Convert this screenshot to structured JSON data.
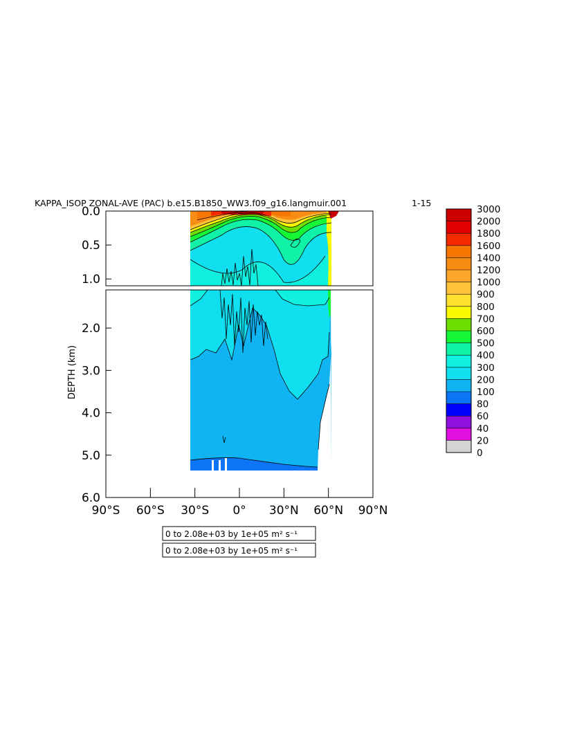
{
  "chart_data": {
    "type": "heatmap",
    "title": "KAPPA_ISOP ZONAL-AVE (PAC) b.e15.B1850_WW3.f09_g16.langmuir.001",
    "title_suffix": "1-15",
    "ylabel": "DEPTH (km)",
    "xlabel": "",
    "x_tick_labels": [
      "90°S",
      "60°S",
      "30°S",
      "0°",
      "30°N",
      "60°N",
      "90°N"
    ],
    "x_tick_values": [
      -90,
      -60,
      -30,
      0,
      30,
      60,
      90
    ],
    "xlim": [
      -90,
      90
    ],
    "upper_panel": {
      "ylim": [
        0.0,
        1.1
      ],
      "y_tick_labels": [
        "0.0",
        "0.5",
        "1.0"
      ],
      "y_tick_values": [
        0.0,
        0.5,
        1.0
      ]
    },
    "lower_panel": {
      "ylim": [
        1.1,
        6.0
      ],
      "y_tick_labels": [
        "2.0",
        "3.0",
        "4.0",
        "5.0",
        "6.0"
      ],
      "y_tick_values": [
        2.0,
        3.0,
        4.0,
        5.0,
        6.0
      ]
    },
    "data_extent": {
      "lat_min": -34,
      "lat_max": 62,
      "max_depth": 5.35
    },
    "colorbar": {
      "levels": [
        "3000",
        "2000",
        "1800",
        "1600",
        "1400",
        "1200",
        "1000",
        "900",
        "800",
        "700",
        "600",
        "500",
        "400",
        "300",
        "200",
        "100",
        "80",
        "60",
        "40",
        "20",
        "0"
      ],
      "colors": [
        "#cc0000",
        "#e30000",
        "#f52a00",
        "#f87700",
        "#f98c15",
        "#fca62c",
        "#fec23b",
        "#ffe22f",
        "#f9f900",
        "#6ee000",
        "#14f838",
        "#10f2a8",
        "#10f0e0",
        "#10dfef",
        "#10b4f2",
        "#0a75f5",
        "#0000ff",
        "#9010e0",
        "#e010e0",
        "#d4d4d4",
        "#787878"
      ]
    },
    "grid": false,
    "legend_position": "right",
    "annotation": "0 to 2.08e+03 by 1e+05",
    "annotation_unit": "m² s⁻¹"
  }
}
